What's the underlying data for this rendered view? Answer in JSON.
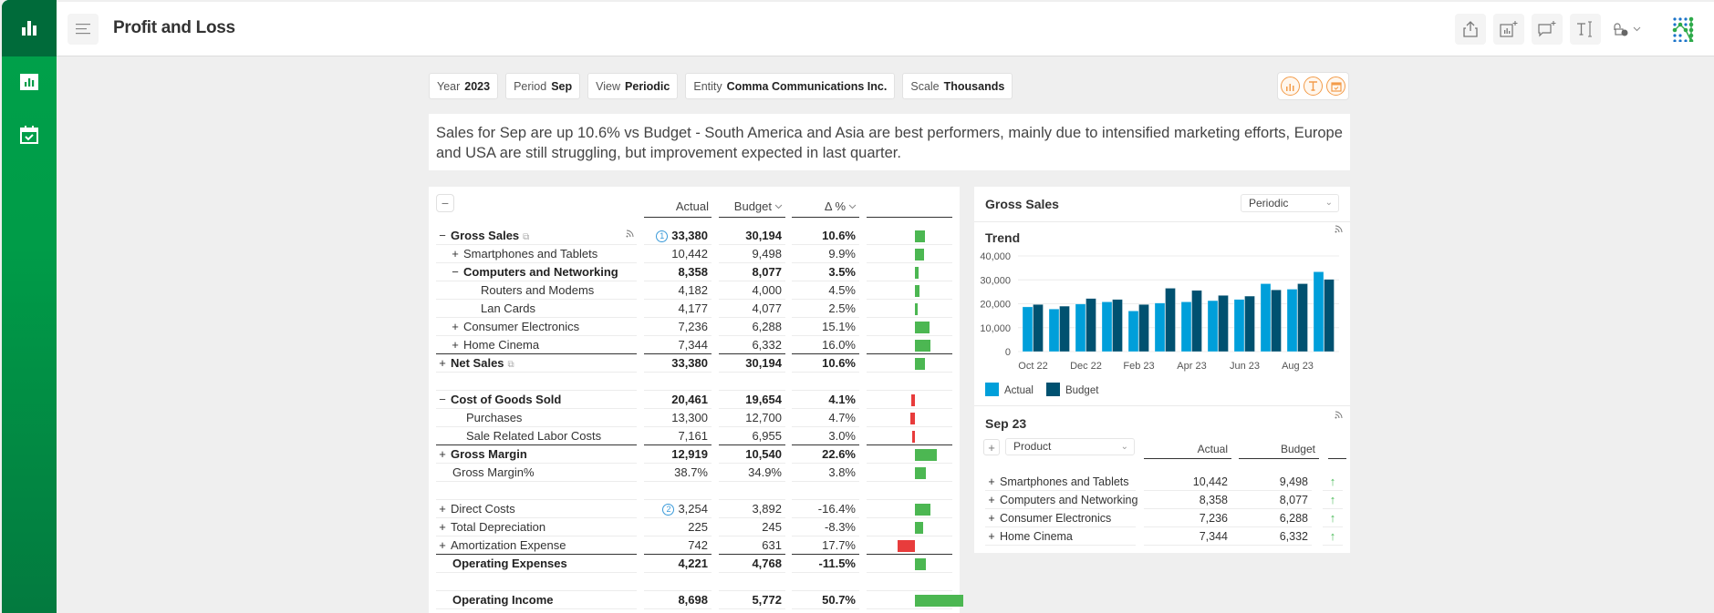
{
  "app": {
    "title": "Profit and Loss",
    "sidebar": [
      {
        "name": "analytics-home",
        "icon": "bar-chart-icon",
        "active": true
      },
      {
        "name": "reports",
        "icon": "report-chart-icon",
        "active": false
      },
      {
        "name": "calendar",
        "icon": "calendar-check-icon",
        "active": false
      }
    ],
    "toolbar": [
      "share-icon",
      "add-chart-icon",
      "add-comment-icon",
      "text-cursor-icon",
      "lock-icon"
    ],
    "brand_color": "#009c48",
    "accent_dark": "#006b3a"
  },
  "filters": [
    {
      "label": "Year",
      "value": "2023"
    },
    {
      "label": "Period",
      "value": "Sep"
    },
    {
      "label": "View",
      "value": "Periodic"
    },
    {
      "label": "Entity",
      "value": "Comma Communications Inc."
    },
    {
      "label": "Scale",
      "value": "Thousands"
    }
  ],
  "actions": [
    "chart-icon",
    "text-icon",
    "calendar-icon"
  ],
  "comment": "Sales for Sep are up 10.6% vs Budget - South America and Asia are best performers, mainly due to intensified marketing efforts, Europe and USA are still struggling, but improvement expected in last quarter.",
  "pl": {
    "headers": {
      "actual": "Actual",
      "budget": "Budget",
      "variance": "Δ %"
    },
    "rows": [
      {
        "name": "Gross Sales",
        "toggle": "−",
        "level": 1,
        "bold": true,
        "actual": "33,380",
        "budget": "30,194",
        "var": "10.6%",
        "varValue": 10.6,
        "good": true,
        "badge": "1",
        "ext": true,
        "feed": true
      },
      {
        "name": "Smartphones and Tablets",
        "toggle": "+",
        "level": 2,
        "bold": false,
        "actual": "10,442",
        "budget": "9,498",
        "var": "9.9%",
        "varValue": 9.9,
        "good": true
      },
      {
        "name": "Computers and Networking",
        "toggle": "−",
        "level": 2,
        "bold": true,
        "actual": "8,358",
        "budget": "8,077",
        "var": "3.5%",
        "varValue": 3.5,
        "good": true
      },
      {
        "name": "Routers and Modems",
        "toggle": "",
        "level": 3,
        "bold": false,
        "actual": "4,182",
        "budget": "4,000",
        "var": "4.5%",
        "varValue": 4.5,
        "good": true
      },
      {
        "name": "Lan Cards",
        "toggle": "",
        "level": 3,
        "bold": false,
        "actual": "4,177",
        "budget": "4,077",
        "var": "2.5%",
        "varValue": 2.5,
        "good": true
      },
      {
        "name": "Consumer Electronics",
        "toggle": "+",
        "level": 2,
        "bold": false,
        "actual": "7,236",
        "budget": "6,288",
        "var": "15.1%",
        "varValue": 15.1,
        "good": true
      },
      {
        "name": "Home Cinema",
        "toggle": "+",
        "level": 2,
        "bold": false,
        "actual": "7,344",
        "budget": "6,332",
        "var": "16.0%",
        "varValue": 16.0,
        "good": true,
        "totalBelow": true
      },
      {
        "name": "Net Sales",
        "toggle": "+",
        "level": 1,
        "bold": true,
        "actual": "33,380",
        "budget": "30,194",
        "var": "10.6%",
        "varValue": 10.6,
        "good": true,
        "ext": true
      },
      {
        "spacer": true
      },
      {
        "name": "Cost of Goods Sold",
        "toggle": "−",
        "level": 1,
        "bold": true,
        "actual": "20,461",
        "budget": "19,654",
        "var": "4.1%",
        "varValue": 4.1,
        "good": false
      },
      {
        "name": "Purchases",
        "toggle": "",
        "level": 2,
        "bold": false,
        "actual": "13,300",
        "budget": "12,700",
        "var": "4.7%",
        "varValue": 4.7,
        "good": false
      },
      {
        "name": "Sale Related Labor Costs",
        "toggle": "",
        "level": 2,
        "bold": false,
        "actual": "7,161",
        "budget": "6,955",
        "var": "3.0%",
        "varValue": 3.0,
        "good": false,
        "totalBelow": true
      },
      {
        "name": "Gross Margin",
        "toggle": "+",
        "level": 1,
        "bold": true,
        "actual": "12,919",
        "budget": "10,540",
        "var": "22.6%",
        "varValue": 22.6,
        "good": true
      },
      {
        "name": "Gross Margin%",
        "toggle": "",
        "level": 0,
        "bold": false,
        "actual": "38.7%",
        "budget": "34.9%",
        "var": "3.8%",
        "varValue": 11,
        "good": true
      },
      {
        "spacer": true
      },
      {
        "name": "Direct Costs",
        "toggle": "+",
        "level": 1,
        "bold": false,
        "actual": "3,254",
        "budget": "3,892",
        "var": "-16.4%",
        "varValue": 16.4,
        "good": true,
        "badge": "2"
      },
      {
        "name": "Total Depreciation",
        "toggle": "+",
        "level": 1,
        "bold": false,
        "actual": "225",
        "budget": "245",
        "var": "-8.3%",
        "varValue": 8.3,
        "good": true
      },
      {
        "name": "Amortization Expense",
        "toggle": "+",
        "level": 1,
        "bold": false,
        "actual": "742",
        "budget": "631",
        "var": "17.7%",
        "varValue": 17.7,
        "good": false,
        "totalBelow": true
      },
      {
        "name": "Operating Expenses",
        "toggle": "",
        "level": 0,
        "bold": true,
        "actual": "4,221",
        "budget": "4,768",
        "var": "-11.5%",
        "varValue": 11.5,
        "good": true
      },
      {
        "spacer": true,
        "totalBelow": true
      },
      {
        "name": "Operating Income",
        "toggle": "",
        "level": 0,
        "bold": true,
        "actual": "8,698",
        "budget": "5,772",
        "var": "50.7%",
        "varValue": 50.7,
        "good": true
      }
    ],
    "good_color": "#4cb752",
    "bad_color": "#e83c3c"
  },
  "gross_sales_panel": {
    "title": "Gross Sales",
    "view_select": "Periodic",
    "trend_title": "Trend",
    "sep_title": "Sep 23",
    "product_select": "Product",
    "sep_headers": {
      "actual": "Actual",
      "budget": "Budget"
    },
    "sep_rows": [
      {
        "name": "Smartphones and Tablets",
        "actual": "10,442",
        "budget": "9,498",
        "trend": "up"
      },
      {
        "name": "Computers and Networking",
        "actual": "8,358",
        "budget": "8,077",
        "trend": "up"
      },
      {
        "name": "Consumer Electronics",
        "actual": "7,236",
        "budget": "6,288",
        "trend": "up"
      },
      {
        "name": "Home Cinema",
        "actual": "7,344",
        "budget": "6,332",
        "trend": "up"
      }
    ]
  },
  "chart_data": {
    "type": "bar",
    "title": "Trend",
    "xlabel": "",
    "ylabel": "",
    "categories": [
      "Oct 22",
      "Nov 22",
      "Dec 22",
      "Jan 23",
      "Feb 23",
      "Mar 23",
      "Apr 23",
      "May 23",
      "Jun 23",
      "Jul 23",
      "Aug 23",
      "Sep 23"
    ],
    "x_tick_labels": [
      "Oct 22",
      "Dec 22",
      "Feb 23",
      "Apr 23",
      "Jun 23",
      "Aug 23"
    ],
    "y_ticks": [
      "0",
      "10,000",
      "20,000",
      "30,000",
      "40,000"
    ],
    "ylim": [
      0,
      40000
    ],
    "grid": true,
    "legend": "bottom-left",
    "series": [
      {
        "name": "Actual",
        "color": "#009fda",
        "values": [
          18700,
          17800,
          19900,
          20800,
          17000,
          20300,
          20800,
          21300,
          21800,
          28400,
          26100,
          33380
        ]
      },
      {
        "name": "Budget",
        "color": "#005170",
        "values": [
          19700,
          19000,
          22200,
          21800,
          19700,
          26500,
          25600,
          23500,
          23200,
          25800,
          28400,
          30194
        ]
      }
    ]
  }
}
